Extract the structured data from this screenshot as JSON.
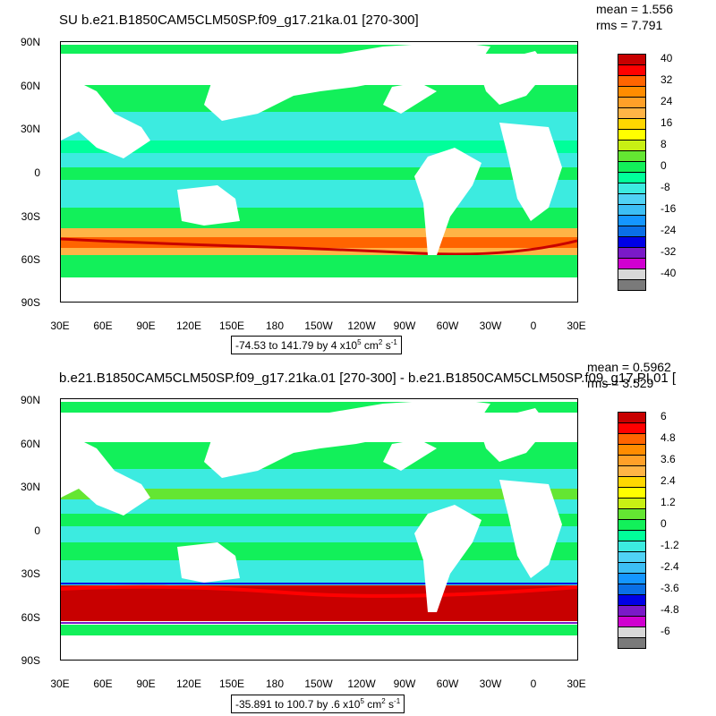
{
  "panels": [
    {
      "id": "top",
      "title": "SU b.e21.B1850CAM5CLM50SP.f09_g17.21ka.01 [270-300]",
      "stats": {
        "mean": "mean = 1.556",
        "rms": "rms = 7.791"
      },
      "range": {
        "prefix": "-74.53 to 141.79 by 4 x10",
        "exp": "5",
        "unit": " cm",
        "unit_exp": "2",
        "suffix": " s",
        "suffix_exp": "-1"
      },
      "colorbar_labels": [
        "40",
        "32",
        "24",
        "16",
        "8",
        "0",
        "-8",
        "-16",
        "-24",
        "-32",
        "-40"
      ]
    },
    {
      "id": "bottom",
      "title": "b.e21.B1850CAM5CLM50SP.f09_g17.21ka.01 [270-300] - b.e21.B1850CAM5CLM50SP.f09_g17.PI.01 [",
      "stats": {
        "mean": "mean = 0.5962",
        "rms": "rms = 3.529"
      },
      "range": {
        "prefix": "-35.891 to 100.7 by .6 x10",
        "exp": "5",
        "unit": " cm",
        "unit_exp": "2",
        "suffix": " s",
        "suffix_exp": "-1"
      },
      "colorbar_labels": [
        "6",
        "4.8",
        "3.6",
        "2.4",
        "1.2",
        "0",
        "-1.2",
        "-2.4",
        "-3.6",
        "-4.8",
        "-6"
      ]
    }
  ],
  "lat_ticks": [
    "90N",
    "60N",
    "30N",
    "0",
    "30S",
    "60S",
    "90S"
  ],
  "lon_ticks": [
    "30E",
    "60E",
    "90E",
    "120E",
    "150E",
    "180",
    "150W",
    "120W",
    "90W",
    "60W",
    "30W",
    "0",
    "30E"
  ],
  "colorbar_colors": [
    "#7a7a7a",
    "#d8d8d8",
    "#d000d0",
    "#7a19c8",
    "#0000e6",
    "#0a6fe6",
    "#1496ff",
    "#3cbef5",
    "#50d2f5",
    "#3cebe0",
    "#00ff9a",
    "#12f05a",
    "#64e632",
    "#c8f014",
    "#ffff00",
    "#ffd700",
    "#ffb446",
    "#ffa028",
    "#ff8c00",
    "#ff6400",
    "#ff0000",
    "#c80000"
  ]
}
